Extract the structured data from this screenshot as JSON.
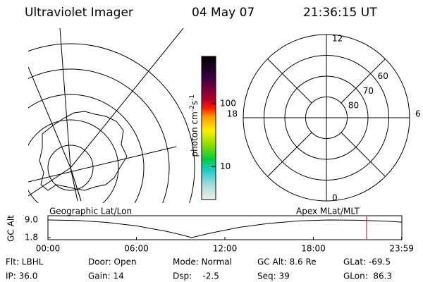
{
  "header": {
    "title": "Ultraviolet Imager",
    "date": "04 May 07",
    "time": "21:36:15 UT"
  },
  "colorbar": {
    "label_parts": [
      "photon cm",
      "-2",
      "s",
      "-1"
    ],
    "log": true,
    "lim": [
      3,
      560
    ],
    "ticks": [
      10,
      100
    ]
  },
  "polar": {
    "lat_rings": [
      80,
      70,
      60,
      50
    ],
    "lat_labels": [
      60,
      70,
      80
    ],
    "mlt_labels": [
      12,
      18,
      6,
      0
    ],
    "lat_limit": 50
  },
  "panels": {
    "left": "Geographic Lat/Lon",
    "right": "Apex MLat/MLT"
  },
  "chart_data": {
    "type": "line",
    "y_label": "GC Alt",
    "x": [
      0,
      2,
      4,
      6,
      8,
      9,
      9.75,
      11,
      13,
      15,
      17,
      19,
      21,
      23,
      24
    ],
    "series": [
      {
        "name": "GC Alt",
        "color": "#000000",
        "values": [
          9.0,
          8.8,
          8.0,
          6.6,
          4.4,
          3.0,
          1.8,
          3.6,
          6.0,
          7.6,
          8.6,
          9.0,
          8.9,
          8.5,
          8.1
        ]
      }
    ],
    "xlim": [
      0,
      24
    ],
    "xticks": [
      {
        "value": 0,
        "label": "00:00"
      },
      {
        "value": 6,
        "label": "06:00"
      },
      {
        "value": 12,
        "label": "12:00"
      },
      {
        "value": 18,
        "label": "18:00"
      },
      {
        "value": 23.983,
        "label": "23:59"
      }
    ],
    "ylim": [
      1.8,
      9.0
    ],
    "yticks": [
      {
        "value": 9.0,
        "label": "9.0"
      },
      {
        "value": 1.8,
        "label": "1.8"
      }
    ],
    "marker_x": 21.604,
    "marker_color": "#ff0000"
  },
  "footer": {
    "rows": [
      [
        "Flt: LBHL",
        "Door: Open",
        "Mode: Normal",
        "GC Alt: 8.6 Re",
        "GLat: -69.5"
      ],
      [
        "IP: 36.0",
        "Gain: 14",
        "Dsp:    -2.5",
        "Seq: 39",
        "GLon:  86.3"
      ]
    ]
  }
}
